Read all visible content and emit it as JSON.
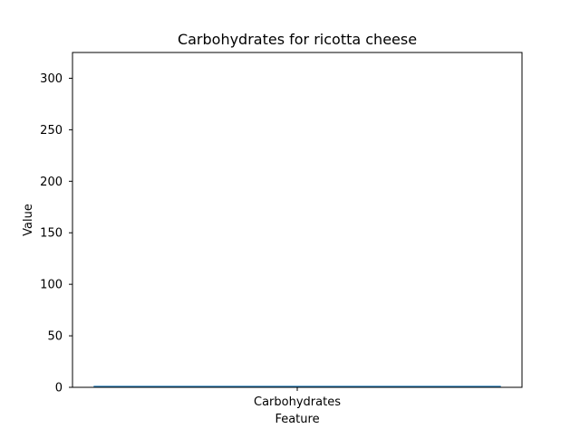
{
  "chart_data": {
    "type": "bar",
    "title": "Carbohydrates for ricotta cheese",
    "xlabel": "Feature",
    "ylabel": "Value",
    "categories": [
      "Carbohydrates"
    ],
    "values": [
      1.45
    ],
    "ylim": [
      0,
      325
    ],
    "yticks": [
      0,
      50,
      100,
      150,
      200,
      250,
      300
    ],
    "grid": false,
    "legend": "none",
    "colors": {
      "bar": "#1f77b4",
      "axis": "#000000",
      "background": "#ffffff"
    }
  }
}
